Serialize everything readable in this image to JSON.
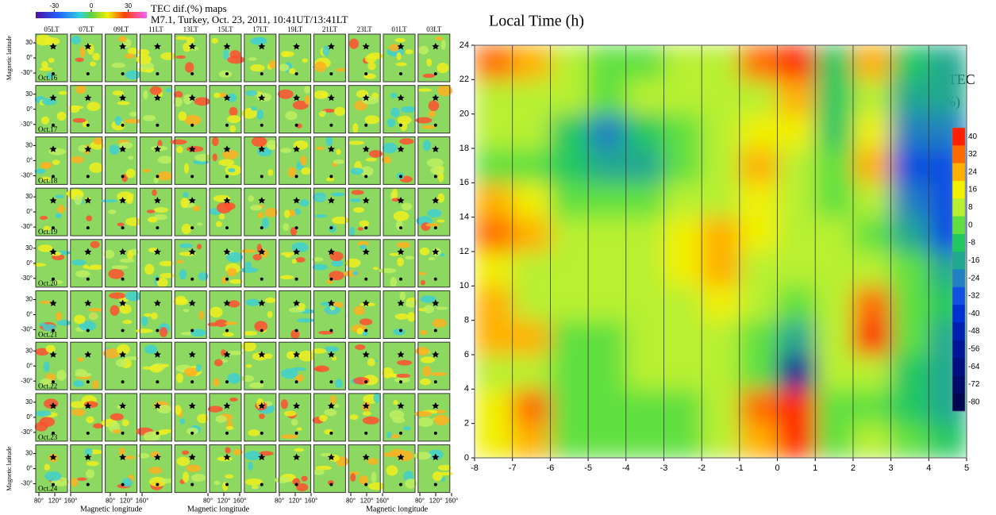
{
  "chart_data": [
    {
      "type": "map-grid",
      "title": "TEC dif.(%) maps",
      "subtitle": "M7.1, Turkey, Oct. 23, 2011, 10:41UT/13:41LT",
      "colorbar_ticks": [
        -30,
        0,
        30
      ],
      "columns": [
        "05LT",
        "07LT",
        "09LT",
        "11LT",
        "13LT",
        "15LT",
        "17LT",
        "19LT",
        "21LT",
        "23LT",
        "01LT",
        "03LT"
      ],
      "rows": [
        "Oct.16",
        "Oct.17",
        "Oct.18",
        "Oct.19",
        "Oct.20",
        "Oct.21",
        "Oct.22",
        "Oct.23",
        "Oct.24"
      ],
      "yticks": [
        30,
        {
          "value": 0,
          "label": "0°"
        },
        {
          "value": -30,
          "label": "-30°"
        }
      ],
      "xticks": [
        {
          "value": 80,
          "label": "80°"
        },
        {
          "value": 120,
          "label": "120°"
        },
        {
          "value": 160,
          "label": "160°"
        }
      ],
      "ylabel": "Magnetic latitude",
      "xlabel": "Magnetic longitude"
    },
    {
      "type": "heatmap",
      "ylabel": "Local Time (h)",
      "colorbar_title": [
        "ΔTEC",
        "(%)"
      ],
      "xlim": [
        -8,
        5
      ],
      "ylim": [
        0,
        24
      ],
      "xticks": [
        -8,
        -7,
        -6,
        -5,
        -4,
        -3,
        -2,
        -1,
        0,
        1,
        2,
        3,
        4,
        5
      ],
      "yticks": [
        0,
        2,
        4,
        6,
        8,
        10,
        12,
        14,
        16,
        18,
        20,
        22,
        24
      ],
      "grid": true,
      "x": [
        -7.5,
        -6.5,
        -5.5,
        -4.5,
        -3.5,
        -2.5,
        -1.5,
        -0.5,
        0.5,
        1.5,
        2.5,
        3.5,
        4.5
      ],
      "y": [
        1,
        3,
        5,
        7,
        9,
        11,
        13,
        15,
        17,
        19,
        21,
        23
      ],
      "z": [
        [
          20,
          30,
          5,
          0,
          5,
          5,
          10,
          30,
          40,
          5,
          8,
          0,
          -5
        ],
        [
          20,
          35,
          5,
          0,
          5,
          5,
          10,
          35,
          40,
          0,
          5,
          -5,
          -10
        ],
        [
          10,
          15,
          5,
          5,
          10,
          10,
          10,
          0,
          -50,
          10,
          15,
          -5,
          -15
        ],
        [
          30,
          25,
          5,
          0,
          10,
          10,
          15,
          5,
          -10,
          15,
          40,
          0,
          -10
        ],
        [
          30,
          15,
          10,
          15,
          15,
          15,
          20,
          10,
          5,
          15,
          38,
          5,
          -5
        ],
        [
          18,
          15,
          15,
          15,
          15,
          18,
          25,
          15,
          10,
          10,
          15,
          0,
          -10
        ],
        [
          32,
          30,
          10,
          10,
          15,
          18,
          28,
          20,
          15,
          10,
          5,
          -10,
          -25
        ],
        [
          25,
          20,
          0,
          0,
          5,
          10,
          15,
          22,
          15,
          5,
          10,
          -20,
          -30
        ],
        [
          5,
          5,
          -5,
          -10,
          -10,
          0,
          10,
          28,
          15,
          0,
          30,
          -25,
          -30
        ],
        [
          10,
          10,
          -5,
          -20,
          -5,
          5,
          10,
          18,
          20,
          -5,
          20,
          -20,
          -20
        ],
        [
          15,
          15,
          10,
          5,
          10,
          10,
          10,
          15,
          28,
          -5,
          15,
          -10,
          -15
        ],
        [
          35,
          30,
          10,
          5,
          5,
          10,
          8,
          35,
          40,
          -5,
          25,
          -5,
          -15
        ]
      ],
      "colorbar_ticks": [
        40,
        32,
        24,
        16,
        8,
        0,
        -8,
        -16,
        -24,
        -32,
        -40,
        -48,
        -56,
        -64,
        -72,
        -80
      ],
      "colorbar_colors": [
        "#ff2000",
        "#ff6a00",
        "#ffb000",
        "#f0f000",
        "#b8f030",
        "#60e040",
        "#20c860",
        "#20a890",
        "#2080c0",
        "#1050e0",
        "#0030d0",
        "#0020b0",
        "#001898",
        "#001080",
        "#000c68",
        "#000850"
      ]
    }
  ]
}
